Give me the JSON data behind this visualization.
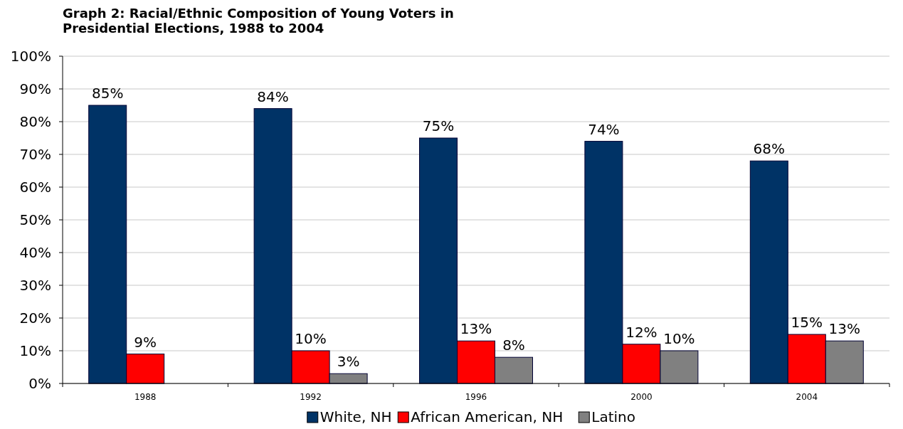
{
  "chart_data": {
    "type": "bar",
    "title": "Graph 2: Racial/Ethnic Composition of Young Voters in Presidential Elections, 1988 to 2004",
    "categories": [
      "1988",
      "1992",
      "1996",
      "2000",
      "2004"
    ],
    "series": [
      {
        "name": "White, NH",
        "color": "#003366",
        "values": [
          85,
          84,
          75,
          74,
          68
        ],
        "value_labels": [
          "85%",
          "84%",
          "75%",
          "74%",
          "68%"
        ]
      },
      {
        "name": "African American, NH",
        "color": "#ff0000",
        "values": [
          9,
          10,
          13,
          12,
          15
        ],
        "value_labels": [
          "9%",
          "10%",
          "13%",
          "12%",
          "15%"
        ]
      },
      {
        "name": "Latino",
        "color": "#808080",
        "values": [
          null,
          3,
          8,
          10,
          13
        ],
        "value_labels": [
          null,
          "3%",
          "8%",
          "10%",
          "13%"
        ]
      }
    ],
    "ylim": [
      0,
      100
    ],
    "yticks": [
      {
        "value": 0,
        "label": "0%"
      },
      {
        "value": 10,
        "label": "10%"
      },
      {
        "value": 20,
        "label": "20%"
      },
      {
        "value": 30,
        "label": "30%"
      },
      {
        "value": 40,
        "label": "40%"
      },
      {
        "value": 50,
        "label": "50%"
      },
      {
        "value": 60,
        "label": "60%"
      },
      {
        "value": 70,
        "label": "70%"
      },
      {
        "value": 80,
        "label": "80%"
      },
      {
        "value": 90,
        "label": "90%"
      },
      {
        "value": 100,
        "label": "100%"
      }
    ],
    "grid": "y",
    "legend": "bottom"
  }
}
